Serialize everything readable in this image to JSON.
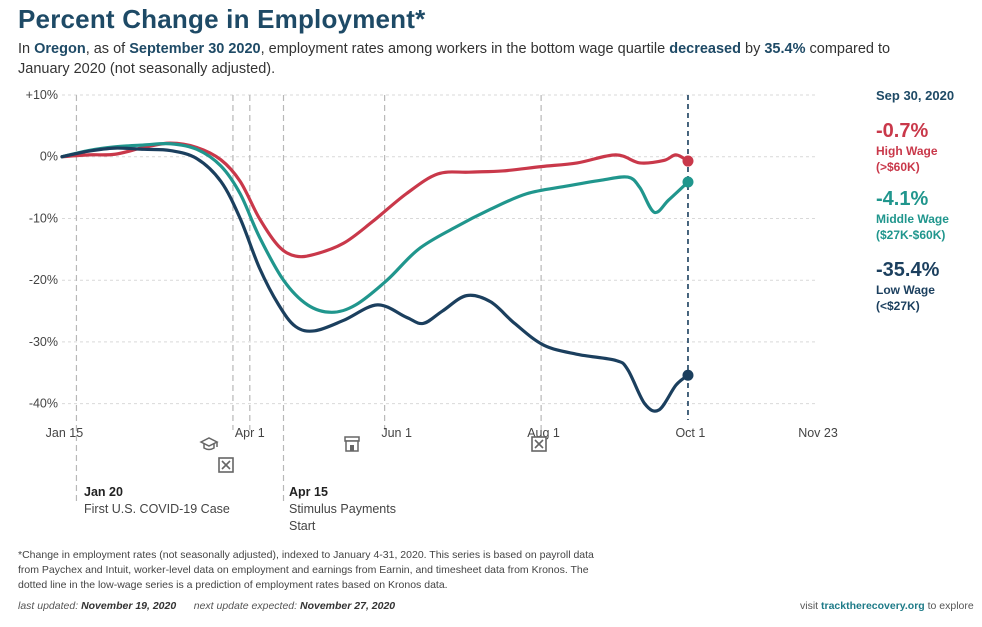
{
  "header": {
    "title": "Percent Change in Employment*",
    "subtitle": {
      "t1": "In ",
      "region": "Oregon",
      "t2": ", as of ",
      "date": "September 30 2020",
      "t3": ", employment rates among workers in the bottom wage quartile ",
      "direction": "decreased",
      "t4": " by ",
      "amount": "35.4%",
      "t5": " compared to January 2020 (not seasonally adjusted)."
    }
  },
  "legend": {
    "date": "Sep 30, 2020",
    "items": [
      {
        "value": "-0.7%",
        "line1": "High Wage",
        "line2": "(>$60K)"
      },
      {
        "value": "-4.1%",
        "line1": "Middle Wage",
        "line2": "($27K-$60K)"
      },
      {
        "value": "-35.4%",
        "line1": "Low Wage",
        "line2": "(<$27K)"
      }
    ]
  },
  "annotations": [
    {
      "date": "Jan 20",
      "text": "First U.S. COVID-19 Case"
    },
    {
      "date": "Apr 15",
      "line1": "Stimulus Payments",
      "line2": "Start"
    }
  ],
  "icons": [
    "graduation-cap-icon",
    "closed-box-icon",
    "store-icon",
    "closed-box-icon"
  ],
  "footnote": "*Change in employment rates (not seasonally adjusted), indexed to January 4-31, 2020. This series is based on payroll data from Paychex and Intuit, worker-level data on employment and earnings from Earnin, and timesheet data from Kronos. The dotted line in the low-wage series is a prediction of employment rates based on Kronos data.",
  "updated": {
    "label1": "last updated:",
    "date1": "November 19, 2020",
    "label2": "next update expected:",
    "date2": "November 27, 2020"
  },
  "visit": {
    "t1": "visit ",
    "link": "tracktherecovery.org",
    "t2": " to explore"
  },
  "chart_data": {
    "type": "line",
    "x_unit": "date (2020)",
    "x_ticks": [
      {
        "label": "Jan 15",
        "date": "2020-01-15"
      },
      {
        "label": "Apr 1",
        "date": "2020-04-01"
      },
      {
        "label": "Jun 1",
        "date": "2020-06-01"
      },
      {
        "label": "Aug 1",
        "date": "2020-08-01"
      },
      {
        "label": "Oct 1",
        "date": "2020-10-01"
      },
      {
        "label": "Nov 23",
        "date": "2020-11-23"
      }
    ],
    "y_ticks": [
      {
        "label": "+10%",
        "value": 10
      },
      {
        "label": "0%",
        "value": 0
      },
      {
        "label": "-10%",
        "value": -10
      },
      {
        "label": "-20%",
        "value": -20
      },
      {
        "label": "-30%",
        "value": -30
      },
      {
        "label": "-40%",
        "value": -40
      }
    ],
    "xlim": [
      "2020-01-14",
      "2020-11-23"
    ],
    "ylim": [
      -42,
      10
    ],
    "grid": true,
    "event_lines": [
      "2020-01-20",
      "2020-03-25",
      "2020-04-01",
      "2020-04-15",
      "2020-05-27",
      "2020-07-31"
    ],
    "current_date_line": "2020-09-30",
    "series": [
      {
        "name": "High Wage",
        "color": "#c9384a",
        "points": [
          [
            "2020-01-14",
            0
          ],
          [
            "2020-01-25",
            0.3
          ],
          [
            "2020-02-05",
            0.4
          ],
          [
            "2020-02-17",
            1.5
          ],
          [
            "2020-02-28",
            2.2
          ],
          [
            "2020-03-10",
            1.5
          ],
          [
            "2020-03-20",
            -0.5
          ],
          [
            "2020-03-28",
            -4
          ],
          [
            "2020-04-05",
            -10
          ],
          [
            "2020-04-13",
            -14.5
          ],
          [
            "2020-04-20",
            -16.1
          ],
          [
            "2020-04-28",
            -15.8
          ],
          [
            "2020-05-10",
            -14
          ],
          [
            "2020-05-22",
            -10.5
          ],
          [
            "2020-06-05",
            -6
          ],
          [
            "2020-06-18",
            -2.8
          ],
          [
            "2020-07-01",
            -2.5
          ],
          [
            "2020-07-15",
            -2.3
          ],
          [
            "2020-07-31",
            -1.6
          ],
          [
            "2020-08-15",
            -1
          ],
          [
            "2020-08-31",
            0.3
          ],
          [
            "2020-09-10",
            -1
          ],
          [
            "2020-09-20",
            -0.6
          ],
          [
            "2020-09-25",
            0.3
          ],
          [
            "2020-09-30",
            -0.7
          ]
        ]
      },
      {
        "name": "Middle Wage",
        "color": "#20968d",
        "points": [
          [
            "2020-01-14",
            0
          ],
          [
            "2020-01-25",
            1.0
          ],
          [
            "2020-02-05",
            1.6
          ],
          [
            "2020-02-17",
            1.9
          ],
          [
            "2020-02-28",
            2.1
          ],
          [
            "2020-03-10",
            1.2
          ],
          [
            "2020-03-20",
            -1.5
          ],
          [
            "2020-03-28",
            -6
          ],
          [
            "2020-04-05",
            -13
          ],
          [
            "2020-04-15",
            -20
          ],
          [
            "2020-04-25",
            -24
          ],
          [
            "2020-05-05",
            -25.2
          ],
          [
            "2020-05-15",
            -24
          ],
          [
            "2020-05-28",
            -20
          ],
          [
            "2020-06-10",
            -15
          ],
          [
            "2020-06-25",
            -11.5
          ],
          [
            "2020-07-10",
            -8.5
          ],
          [
            "2020-07-25",
            -6
          ],
          [
            "2020-08-10",
            -4.8
          ],
          [
            "2020-08-25",
            -3.8
          ],
          [
            "2020-09-05",
            -3.3
          ],
          [
            "2020-09-10",
            -5
          ],
          [
            "2020-09-16",
            -9
          ],
          [
            "2020-09-22",
            -7
          ],
          [
            "2020-09-30",
            -4.1
          ]
        ]
      },
      {
        "name": "Low Wage",
        "color": "#1b3f5e",
        "points": [
          [
            "2020-01-14",
            0
          ],
          [
            "2020-01-25",
            0.9
          ],
          [
            "2020-02-05",
            1.4
          ],
          [
            "2020-02-17",
            1.2
          ],
          [
            "2020-02-28",
            1.0
          ],
          [
            "2020-03-10",
            -0.3
          ],
          [
            "2020-03-20",
            -4
          ],
          [
            "2020-03-28",
            -10
          ],
          [
            "2020-04-05",
            -18
          ],
          [
            "2020-04-13",
            -24
          ],
          [
            "2020-04-20",
            -27.5
          ],
          [
            "2020-04-28",
            -28.2
          ],
          [
            "2020-05-10",
            -26.5
          ],
          [
            "2020-05-24",
            -24
          ],
          [
            "2020-06-05",
            -26
          ],
          [
            "2020-06-12",
            -27
          ],
          [
            "2020-06-20",
            -25
          ],
          [
            "2020-06-30",
            -22.5
          ],
          [
            "2020-07-10",
            -23.5
          ],
          [
            "2020-07-20",
            -27
          ],
          [
            "2020-08-01",
            -30.5
          ],
          [
            "2020-08-15",
            -32
          ],
          [
            "2020-08-31",
            -33
          ],
          [
            "2020-09-05",
            -34.5
          ],
          [
            "2020-09-12",
            -40
          ],
          [
            "2020-09-18",
            -41
          ],
          [
            "2020-09-25",
            -37
          ],
          [
            "2020-09-30",
            -35.4
          ]
        ]
      }
    ]
  }
}
